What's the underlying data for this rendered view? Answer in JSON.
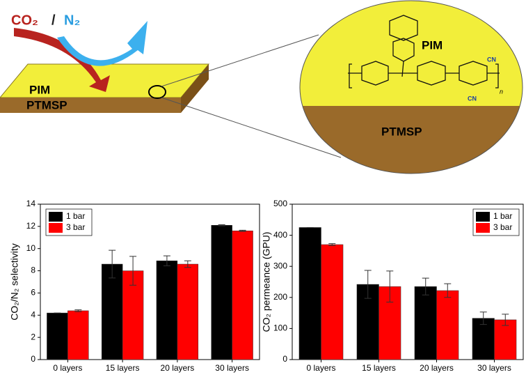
{
  "diagram": {
    "gas_co2": "CO₂",
    "gas_slash": "/",
    "gas_n2": "N₂",
    "slab_top": "PIM",
    "slab_bottom": "PTMSP",
    "zoom_top": "PIM",
    "zoom_bottom": "PTMSP",
    "group_1": "CN",
    "group_2": "CN",
    "repeat": "n"
  },
  "chart_data": [
    {
      "type": "bar",
      "ylabel": "CO₂/N₂ selectivity",
      "categories": [
        "0 layers",
        "15 layers",
        "20 layers",
        "30 layers"
      ],
      "series": [
        {
          "name": "1 bar",
          "color": "#000000",
          "values": [
            4.2,
            8.6,
            8.9,
            12.1
          ],
          "errors": [
            0,
            1.25,
            0.45,
            0.05
          ]
        },
        {
          "name": "3 bar",
          "color": "#ff0000",
          "values": [
            4.4,
            8.0,
            8.6,
            11.6
          ],
          "errors": [
            0.08,
            1.3,
            0.3,
            0.05
          ]
        }
      ],
      "ylim": [
        0,
        14
      ],
      "yticks": [
        0,
        2,
        4,
        6,
        8,
        10,
        12,
        14
      ],
      "legend": "upper left"
    },
    {
      "type": "bar",
      "ylabel": "CO₂ permeance (GPU)",
      "categories": [
        "0 layers",
        "15 layers",
        "20 layers",
        "30 layers"
      ],
      "series": [
        {
          "name": "1 bar",
          "color": "#000000",
          "values": [
            425,
            242,
            235,
            133
          ],
          "errors": [
            0,
            45,
            27,
            20
          ]
        },
        {
          "name": "3 bar",
          "color": "#ff0000",
          "values": [
            370,
            235,
            222,
            128
          ],
          "errors": [
            3,
            50,
            22,
            18
          ]
        }
      ],
      "ylim": [
        0,
        500
      ],
      "yticks": [
        0,
        100,
        200,
        300,
        400,
        500
      ],
      "legend": "upper right"
    }
  ]
}
